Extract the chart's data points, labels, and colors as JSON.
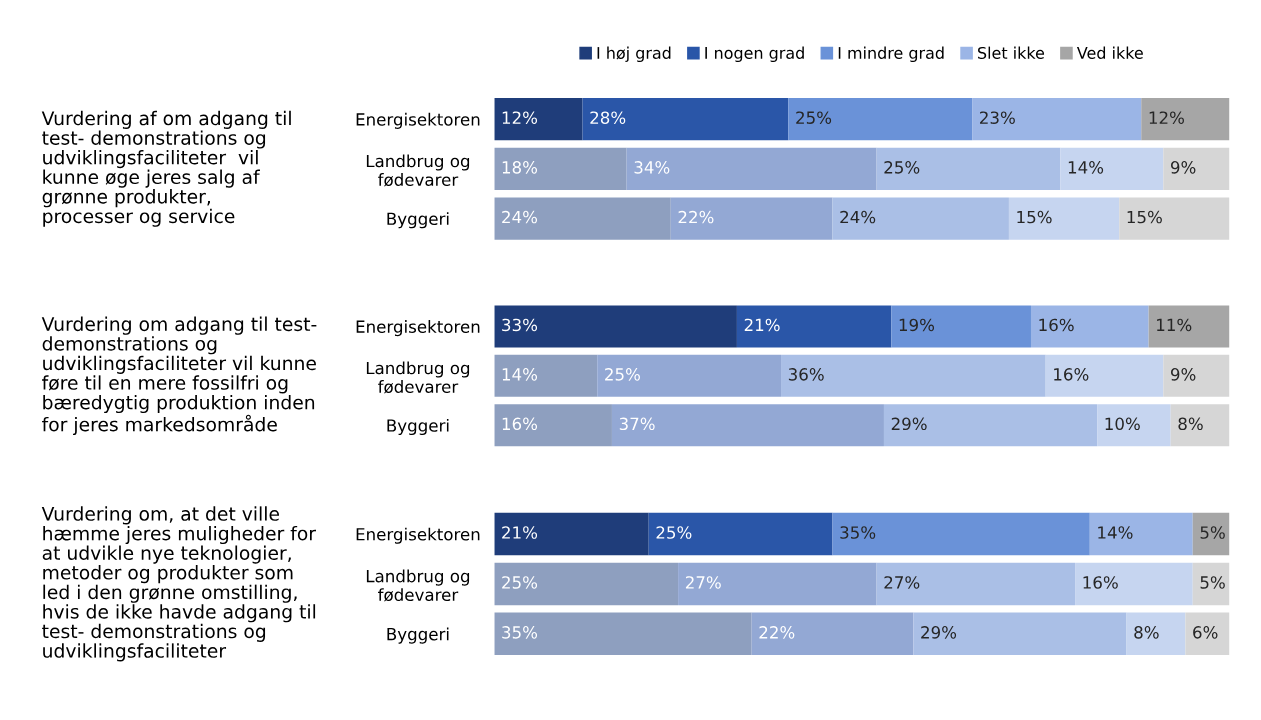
{
  "chart_data": [
    {
      "type": "bar",
      "orientation": "horizontal",
      "stacked": true,
      "legend": "top",
      "title": "Vurdering af om adgang til\ntest- demonstrations og\nudviklingsfaciliteter  vil\nkunne øge jeres salg af\ngrønne produkter,\nprocesser og service",
      "categories": [
        "Energisektoren",
        "Landbrug og\nfødevarer",
        "Byggeri"
      ],
      "series": [
        {
          "name": "I høj grad",
          "color": "#1f3d7a",
          "colors": [
            "#1f3d7a",
            "#8e9fbf",
            "#8e9fbf"
          ],
          "values": [
            12,
            18,
            24
          ],
          "value_labels": [
            "12%",
            "18%",
            "24%"
          ]
        },
        {
          "name": "I nogen grad",
          "color": "#2a56a8",
          "colors": [
            "#2a56a8",
            "#93a8d4",
            "#93a8d4"
          ],
          "values": [
            28,
            34,
            22
          ],
          "value_labels": [
            "28%",
            "34%",
            "22%"
          ]
        },
        {
          "name": "I mindre grad",
          "color": "#6a92d8",
          "colors": [
            "#6a92d8",
            "#aabfe6",
            "#aabfe6"
          ],
          "values": [
            25,
            25,
            24
          ],
          "value_labels": [
            "25%",
            "25%",
            "24%"
          ]
        },
        {
          "name": "Slet ikke",
          "color": "#9bb5e6",
          "colors": [
            "#9bb5e6",
            "#c6d5f0",
            "#c6d5f0"
          ],
          "values": [
            23,
            14,
            15
          ],
          "value_labels": [
            "23%",
            "14%",
            "15%"
          ]
        },
        {
          "name": "Ved ikke",
          "color": "#a6a6a6",
          "colors": [
            "#a6a6a6",
            "#d6d6d6",
            "#d6d6d6"
          ],
          "values": [
            12,
            9,
            15
          ],
          "value_labels": [
            "12%",
            "9%",
            "15%"
          ]
        }
      ]
    },
    {
      "type": "bar",
      "orientation": "horizontal",
      "stacked": true,
      "title": "Vurdering om adgang til test-\ndemonstrations og\nudviklingsfaciliteter vil kunne\nføre til en mere fossilfri og\nbæredygtig produktion inden\nfor jeres markedsområde",
      "categories": [
        "Energisektoren",
        "Landbrug og\nfødevarer",
        "Byggeri"
      ],
      "series": [
        {
          "colors": [
            "#1f3d7a",
            "#8e9fbf",
            "#8e9fbf"
          ],
          "values": [
            33,
            14,
            16
          ],
          "value_labels": [
            "33%",
            "14%",
            "16%"
          ]
        },
        {
          "colors": [
            "#2a56a8",
            "#93a8d4",
            "#93a8d4"
          ],
          "values": [
            21,
            25,
            37
          ],
          "value_labels": [
            "21%",
            "25%",
            "37%"
          ]
        },
        {
          "colors": [
            "#6a92d8",
            "#aabfe6",
            "#aabfe6"
          ],
          "values": [
            19,
            36,
            29
          ],
          "value_labels": [
            "19%",
            "36%",
            "29%"
          ]
        },
        {
          "colors": [
            "#9bb5e6",
            "#c6d5f0",
            "#c6d5f0"
          ],
          "values": [
            16,
            16,
            10
          ],
          "value_labels": [
            "16%",
            "16%",
            "10%"
          ]
        },
        {
          "colors": [
            "#a6a6a6",
            "#d6d6d6",
            "#d6d6d6"
          ],
          "values": [
            11,
            9,
            8
          ],
          "value_labels": [
            "11%",
            "9%",
            "8%"
          ]
        }
      ]
    },
    {
      "type": "bar",
      "orientation": "horizontal",
      "stacked": true,
      "title": "Vurdering om, at det ville\nhæmme jeres muligheder for\nat udvikle nye teknologier,\nmetoder og produkter som\nled i den grønne omstilling,\nhvis de ikke havde adgang til\ntest- demonstrations og\nudviklingsfaciliteter",
      "categories": [
        "Energisektoren",
        "Landbrug og\nfødevarer",
        "Byggeri"
      ],
      "series": [
        {
          "colors": [
            "#1f3d7a",
            "#8e9fbf",
            "#8e9fbf"
          ],
          "values": [
            21,
            25,
            35
          ],
          "value_labels": [
            "21%",
            "25%",
            "35%"
          ]
        },
        {
          "colors": [
            "#2a56a8",
            "#93a8d4",
            "#93a8d4"
          ],
          "values": [
            25,
            27,
            22
          ],
          "value_labels": [
            "25%",
            "27%",
            "22%"
          ]
        },
        {
          "colors": [
            "#6a92d8",
            "#aabfe6",
            "#aabfe6"
          ],
          "values": [
            35,
            27,
            29
          ],
          "value_labels": [
            "35%",
            "27%",
            "29%"
          ]
        },
        {
          "colors": [
            "#9bb5e6",
            "#c6d5f0",
            "#c6d5f0"
          ],
          "values": [
            14,
            16,
            8
          ],
          "value_labels": [
            "14%",
            "16%",
            "8%"
          ]
        },
        {
          "colors": [
            "#a6a6a6",
            "#d6d6d6",
            "#d6d6d6"
          ],
          "values": [
            5,
            5,
            6
          ],
          "value_labels": [
            "5%",
            "5%",
            "6%"
          ]
        }
      ]
    }
  ]
}
